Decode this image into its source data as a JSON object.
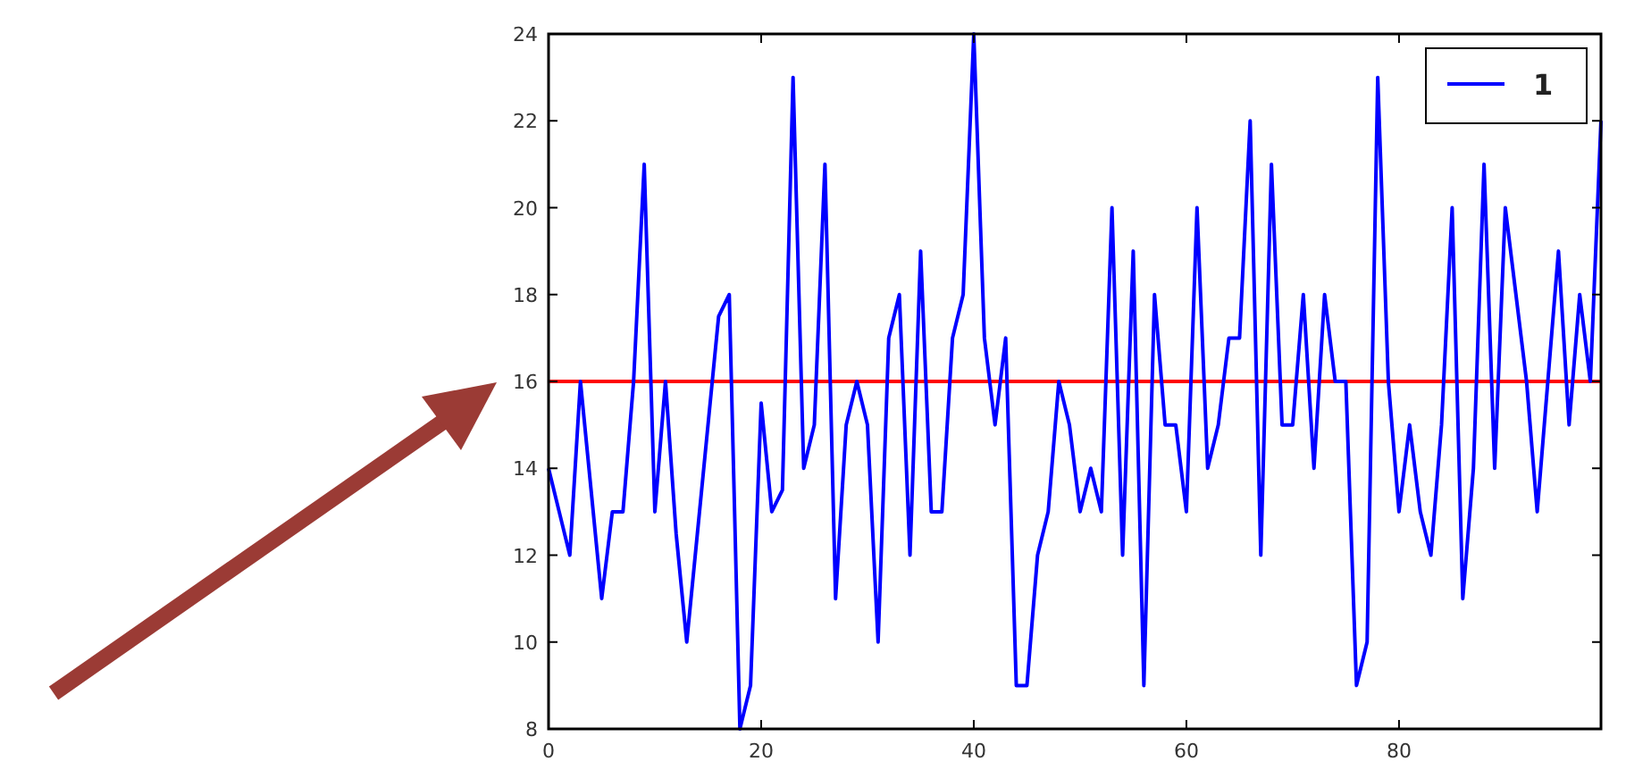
{
  "chart_data": {
    "type": "line",
    "x": [
      0,
      1,
      2,
      3,
      4,
      5,
      6,
      7,
      8,
      9,
      10,
      11,
      12,
      13,
      14,
      15,
      16,
      17,
      18,
      19,
      20,
      21,
      22,
      23,
      24,
      25,
      26,
      27,
      28,
      29,
      30,
      31,
      32,
      33,
      34,
      35,
      36,
      37,
      38,
      39,
      40,
      41,
      42,
      43,
      44,
      45,
      46,
      47,
      48,
      49,
      50,
      51,
      52,
      53,
      54,
      55,
      56,
      57,
      58,
      59,
      60,
      61,
      62,
      63,
      64,
      65,
      66,
      67,
      68,
      69,
      70,
      71,
      72,
      73,
      74,
      75,
      76,
      77,
      78,
      79,
      80,
      81,
      82,
      83,
      84,
      85,
      86,
      87,
      88,
      89,
      90,
      91,
      92,
      93,
      94,
      95,
      96,
      97,
      98,
      99
    ],
    "series": [
      {
        "name": "1",
        "color": "#0000ff",
        "values": [
          14,
          13,
          12,
          16,
          13.5,
          11,
          13,
          13,
          16,
          21,
          13,
          16,
          12.5,
          10,
          12.5,
          15,
          17.5,
          18,
          8,
          9,
          15.5,
          13,
          13.5,
          23,
          14,
          15,
          21,
          11,
          15,
          16,
          15,
          10,
          17,
          18,
          12,
          19,
          13,
          13,
          17,
          18,
          24,
          17,
          15,
          17,
          9,
          9,
          12,
          13,
          16,
          15,
          13,
          14,
          13,
          20,
          12,
          19,
          9,
          18,
          15,
          15,
          13,
          20,
          14,
          15,
          17,
          17,
          22,
          12,
          21,
          15,
          15,
          18,
          14,
          18,
          16,
          16,
          9,
          10,
          23,
          16,
          13,
          15,
          13,
          12,
          15,
          20,
          11,
          14,
          21,
          14,
          20,
          18,
          16,
          13,
          16,
          19,
          15,
          18,
          16,
          22
        ]
      }
    ],
    "xlim": [
      0,
      99
    ],
    "xticks": [
      0,
      20,
      40,
      60,
      80
    ],
    "ylim": [
      8,
      24
    ],
    "yticks": [
      8,
      10,
      12,
      14,
      16,
      18,
      20,
      22,
      24
    ],
    "ref_lines": [
      {
        "axis": "y",
        "value": 16,
        "color": "#ff0000"
      }
    ],
    "legend": "top right",
    "grid": false
  }
}
